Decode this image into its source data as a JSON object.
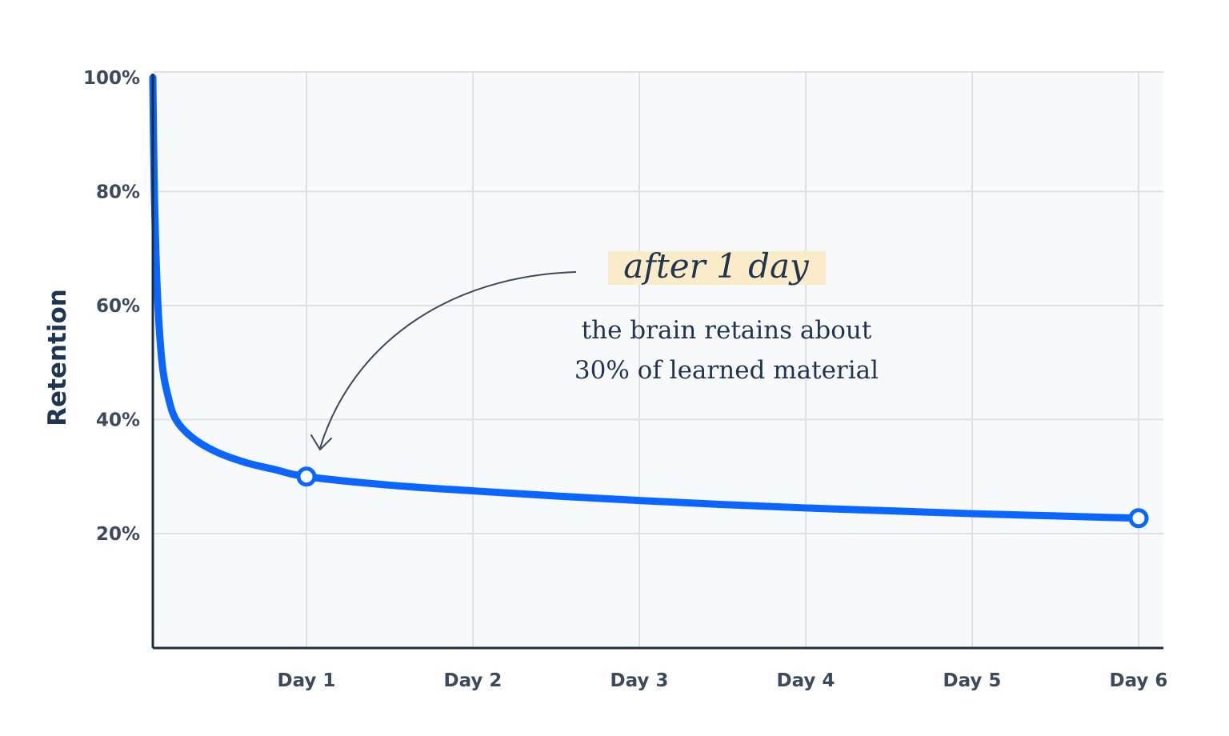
{
  "colors": {
    "line": "#0a66ff",
    "plot_background": "#f8f9fb",
    "grid": "#dde1e7",
    "axis": "#1f2d3d",
    "highlight": "#faecc8",
    "text": "#1f3550"
  },
  "chart_data": {
    "type": "line",
    "title": "",
    "xlabel": "",
    "ylabel": "Retention",
    "xlim": [
      0,
      6
    ],
    "ylim": [
      0,
      100
    ],
    "grid": true,
    "x_ticks": [
      1,
      2,
      3,
      4,
      5,
      6
    ],
    "x_tick_labels": [
      "Day 1",
      "Day 2",
      "Day 3",
      "Day 4",
      "Day 5",
      "Day 6"
    ],
    "y_ticks": [
      20,
      40,
      60,
      80,
      100
    ],
    "y_tick_labels": [
      "20%",
      "40%",
      "60%",
      "80%",
      "100%"
    ],
    "series": [
      {
        "name": "",
        "x": [
          0,
          0.01,
          0.03,
          0.06,
          0.1,
          0.15,
          0.25,
          0.4,
          0.6,
          0.8,
          1,
          1.5,
          2,
          2.5,
          3,
          3.5,
          4,
          4.5,
          5,
          5.5,
          6
        ],
        "y": [
          100,
          80,
          62,
          50,
          44,
          40,
          37,
          34.5,
          32.5,
          31.2,
          30,
          28.5,
          27.5,
          26.6,
          25.8,
          25.1,
          24.5,
          24,
          23.5,
          23.1,
          22.7
        ],
        "markers": [
          {
            "x": 1,
            "y": 30
          },
          {
            "x": 6,
            "y": 22.7
          }
        ]
      }
    ],
    "annotation": {
      "script_label": "after 1 day",
      "text_line1": "the brain retains about",
      "text_line2": "30% of learned material",
      "points_to": {
        "x": 1,
        "y": 30
      }
    }
  }
}
